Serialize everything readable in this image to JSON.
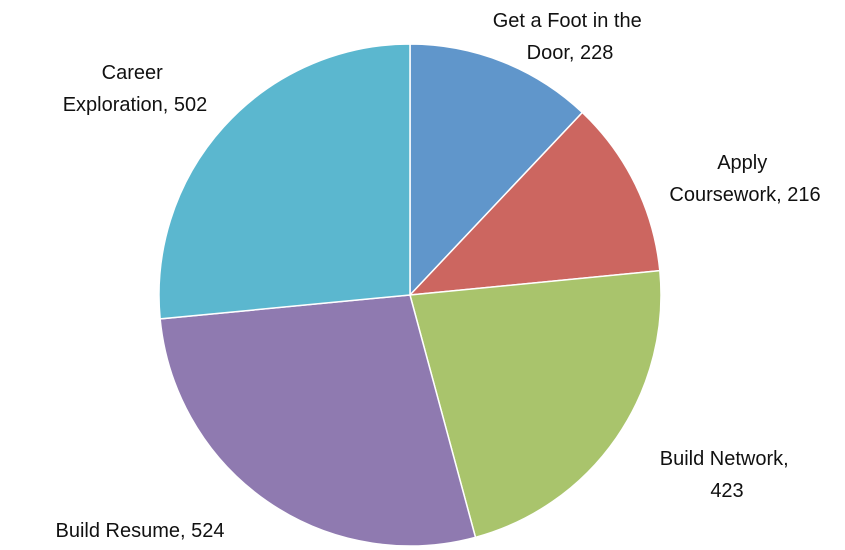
{
  "chart_data": {
    "type": "pie",
    "values": [
      228,
      216,
      423,
      524,
      502
    ],
    "value_labels": [
      "Get a Foot in the Door, 228",
      "Apply Coursework, 216",
      "Build Network, 423",
      "Build Resume, 524",
      "Career Exploration, 502"
    ],
    "colors": [
      "#6096cb",
      "#cc6660",
      "#a9c46c",
      "#8f7ab0",
      "#5bb7cf"
    ]
  }
}
